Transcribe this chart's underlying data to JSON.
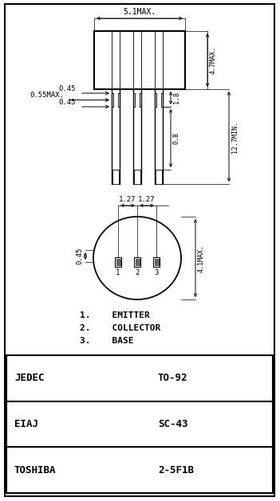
{
  "bg_color": "#ffffff",
  "line_color": "#000000",
  "table_rows": [
    [
      "JEDEC",
      "TO-92"
    ],
    [
      "EIAJ",
      "SC-43"
    ],
    [
      "TOSHIBA",
      "2-5F1B"
    ]
  ],
  "pin_labels": [
    "1.    EMITTER",
    "2.    COLLECTOR",
    "3.    BASE"
  ],
  "body_width_label": "5.1MAX.",
  "body_height_label": "4.7MAX.",
  "lead_len_label": "12.7MIN.",
  "flat_label": "1.8",
  "dia_label": "0.8",
  "lead_dia1": "0.45",
  "lead_dia2": "0.55MAX.",
  "lead_dia3": "0.45",
  "spacing1": "1.27",
  "spacing2": "1.27",
  "bottom_h_label": "0.45",
  "bottom_dia_label": "4.1MAX."
}
